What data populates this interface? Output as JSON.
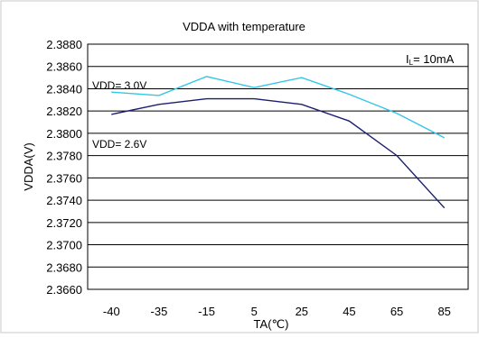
{
  "chart_data": {
    "type": "line",
    "title": "VDDA with temperature",
    "xlabel": "TA(℃)",
    "ylabel": "VDDA(V)",
    "categories": [
      "-40",
      "-35",
      "-15",
      "5",
      "25",
      "45",
      "65",
      "85"
    ],
    "ylim": [
      2.366,
      2.388
    ],
    "yticks": [
      "2.3660",
      "2.3680",
      "2.3700",
      "2.3720",
      "2.3740",
      "2.3760",
      "2.3780",
      "2.3800",
      "2.3820",
      "2.3840",
      "2.3860",
      "2.3880"
    ],
    "grid": true,
    "series": [
      {
        "name": "VDD= 3.0V",
        "color": "#33c6e6",
        "values": [
          2.3837,
          2.3834,
          2.3851,
          2.3841,
          2.385,
          2.3835,
          2.3818,
          2.3796
        ]
      },
      {
        "name": "VDD= 2.6V",
        "color": "#1c1f70",
        "values": [
          2.3817,
          2.3826,
          2.3831,
          2.3831,
          2.3826,
          2.3811,
          2.378,
          2.3733
        ]
      }
    ],
    "annotations": {
      "current": "I",
      "current_sub": "L",
      "current_value": "= 10mA"
    }
  }
}
